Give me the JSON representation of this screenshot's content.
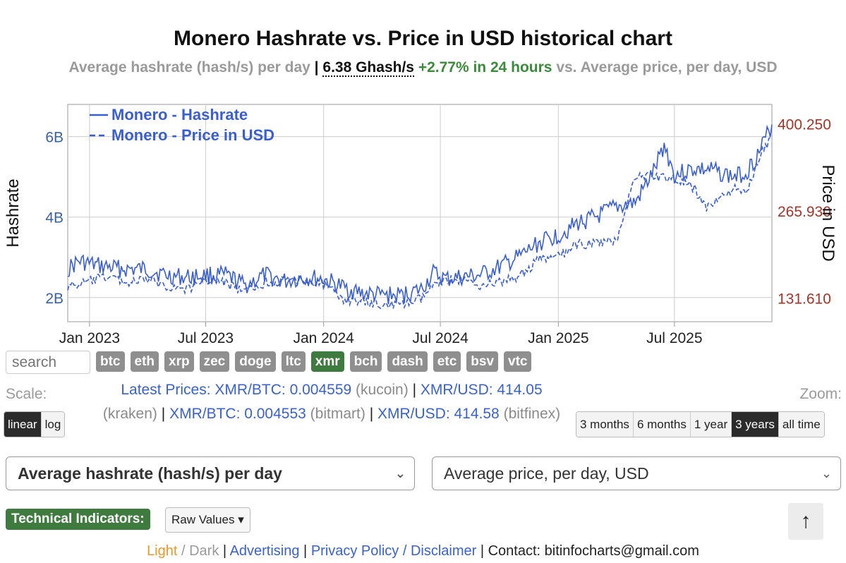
{
  "header": {
    "title": "Monero Hashrate vs. Price in USD historical chart",
    "subtitle_left": "Average hashrate (hash/s) per day",
    "subtitle_sep": "|",
    "current_value": "6.38 Ghash/s",
    "change": "+2.77% in 24 hours",
    "subtitle_right": "vs. Average price, per day, USD"
  },
  "chart_data": {
    "type": "line",
    "xlim": [
      "2022-11-28",
      "2025-11-30"
    ],
    "x_ticks": [
      "Jan 2023",
      "Jul 2023",
      "Jan 2024",
      "Jul 2024",
      "Jan 2025",
      "Jul 2025"
    ],
    "x_tick_dates": [
      "2023-01-01",
      "2023-07-01",
      "2024-01-01",
      "2024-07-01",
      "2025-01-01",
      "2025-07-01"
    ],
    "y_left": {
      "label": "Hashrate",
      "ticks": [
        "2B",
        "4B",
        "6B"
      ],
      "tick_values": [
        2000000000,
        4000000000,
        6000000000
      ],
      "range": [
        1400000000,
        6800000000
      ]
    },
    "y_right": {
      "label": "Price in USD",
      "ticks": [
        "131.610",
        "265.930",
        "400.250"
      ],
      "tick_values": [
        131.61,
        265.93,
        400.25
      ],
      "range": [
        95,
        430
      ]
    },
    "legend": {
      "placement": "top-left"
    },
    "grid": true,
    "series": [
      {
        "name": "Monero - Hashrate",
        "axis": "left",
        "style": "solid",
        "color": "#3a5fcd",
        "points": [
          [
            "2022-11-28",
            2700000000.0
          ],
          [
            "2022-12-15",
            2900000000.0
          ],
          [
            "2023-01-10",
            2800000000.0
          ],
          [
            "2023-02-01",
            2750000000.0
          ],
          [
            "2023-03-01",
            2700000000.0
          ],
          [
            "2023-04-01",
            2700000000.0
          ],
          [
            "2023-05-01",
            2550000000.0
          ],
          [
            "2023-06-01",
            2500000000.0
          ],
          [
            "2023-07-01",
            2550000000.0
          ],
          [
            "2023-08-01",
            2550000000.0
          ],
          [
            "2023-09-01",
            2300000000.0
          ],
          [
            "2023-10-01",
            2550000000.0
          ],
          [
            "2023-11-01",
            2400000000.0
          ],
          [
            "2023-12-01",
            2500000000.0
          ],
          [
            "2024-01-01",
            2450000000.0
          ],
          [
            "2024-02-01",
            2250000000.0
          ],
          [
            "2024-03-01",
            2100000000.0
          ],
          [
            "2024-04-01",
            2050000000.0
          ],
          [
            "2024-05-01",
            2050000000.0
          ],
          [
            "2024-06-01",
            2200000000.0
          ],
          [
            "2024-06-20",
            2600000000.0
          ],
          [
            "2024-07-10",
            2450000000.0
          ],
          [
            "2024-08-01",
            2500000000.0
          ],
          [
            "2024-09-01",
            2550000000.0
          ],
          [
            "2024-10-01",
            2750000000.0
          ],
          [
            "2024-11-01",
            3000000000.0
          ],
          [
            "2024-12-01",
            3350000000.0
          ],
          [
            "2025-01-01",
            3550000000.0
          ],
          [
            "2025-02-01",
            3850000000.0
          ],
          [
            "2025-03-01",
            4000000000.0
          ],
          [
            "2025-04-01",
            4250000000.0
          ],
          [
            "2025-05-01",
            4350000000.0
          ],
          [
            "2025-06-01",
            5200000000.0
          ],
          [
            "2025-06-15",
            5800000000.0
          ],
          [
            "2025-07-01",
            5050000000.0
          ],
          [
            "2025-08-01",
            5200000000.0
          ],
          [
            "2025-09-01",
            5150000000.0
          ],
          [
            "2025-10-01",
            5000000000.0
          ],
          [
            "2025-10-20",
            5100000000.0
          ],
          [
            "2025-11-10",
            5600000000.0
          ],
          [
            "2025-11-30",
            6300000000.0
          ]
        ]
      },
      {
        "name": "Monero - Price in USD",
        "axis": "right",
        "style": "dashed",
        "color": "#3a5fcd",
        "points": [
          [
            "2022-11-28",
            150
          ],
          [
            "2022-12-15",
            152
          ],
          [
            "2023-01-10",
            160
          ],
          [
            "2023-02-01",
            165
          ],
          [
            "2023-03-01",
            155
          ],
          [
            "2023-04-01",
            160
          ],
          [
            "2023-05-01",
            150
          ],
          [
            "2023-06-01",
            145
          ],
          [
            "2023-07-01",
            160
          ],
          [
            "2023-08-01",
            155
          ],
          [
            "2023-09-01",
            140
          ],
          [
            "2023-10-01",
            155
          ],
          [
            "2023-11-01",
            158
          ],
          [
            "2023-12-01",
            160
          ],
          [
            "2024-01-01",
            152
          ],
          [
            "2024-02-01",
            130
          ],
          [
            "2024-03-01",
            125
          ],
          [
            "2024-04-01",
            122
          ],
          [
            "2024-05-01",
            120
          ],
          [
            "2024-06-01",
            130
          ],
          [
            "2024-07-01",
            160
          ],
          [
            "2024-08-01",
            160
          ],
          [
            "2024-09-01",
            152
          ],
          [
            "2024-10-01",
            155
          ],
          [
            "2024-11-01",
            165
          ],
          [
            "2024-12-01",
            190
          ],
          [
            "2025-01-01",
            195
          ],
          [
            "2025-02-01",
            215
          ],
          [
            "2025-03-01",
            215
          ],
          [
            "2025-04-01",
            220
          ],
          [
            "2025-05-01",
            320
          ],
          [
            "2025-06-01",
            320
          ],
          [
            "2025-07-01",
            315
          ],
          [
            "2025-08-01",
            300
          ],
          [
            "2025-08-20",
            270
          ],
          [
            "2025-09-01",
            280
          ],
          [
            "2025-10-01",
            300
          ],
          [
            "2025-10-20",
            290
          ],
          [
            "2025-11-10",
            350
          ],
          [
            "2025-11-30",
            380
          ]
        ]
      }
    ]
  },
  "search": {
    "placeholder": "search"
  },
  "coins": [
    "btc",
    "eth",
    "xrp",
    "zec",
    "doge",
    "ltc",
    "xmr",
    "bch",
    "dash",
    "etc",
    "bsv",
    "vtc"
  ],
  "active_coin": "xmr",
  "scale": {
    "label": "Scale:",
    "options": [
      "linear",
      "log"
    ],
    "active": "linear"
  },
  "zoom": {
    "label": "Zoom:",
    "options": [
      "3 months",
      "6 months",
      "1 year",
      "3 years",
      "all time"
    ],
    "active": "3 years"
  },
  "prices": {
    "label": "Latest Prices:",
    "items": [
      {
        "pair": "XMR/BTC: 0.004559",
        "source": "(kucoin)"
      },
      {
        "pair": "XMR/USD: 414.05",
        "source": "(kraken)"
      },
      {
        "pair": "XMR/BTC: 0.004553",
        "source": "(bitmart)"
      },
      {
        "pair": "XMR/USD: 414.58",
        "source": "(bitfinex)"
      }
    ]
  },
  "selects": {
    "left": "Average hashrate (hash/s) per day",
    "right": "Average price, per day, USD"
  },
  "indicators": {
    "label": "Technical Indicators:",
    "value": "Raw Values"
  },
  "up_button": "↑",
  "footer": {
    "light": "Light",
    "slash": " / ",
    "dark": "Dark",
    "sep": " | ",
    "advertising": "Advertising",
    "privacy": "Privacy Policy / Disclaimer",
    "contact": "Contact: bitinfocharts@gmail.com"
  }
}
